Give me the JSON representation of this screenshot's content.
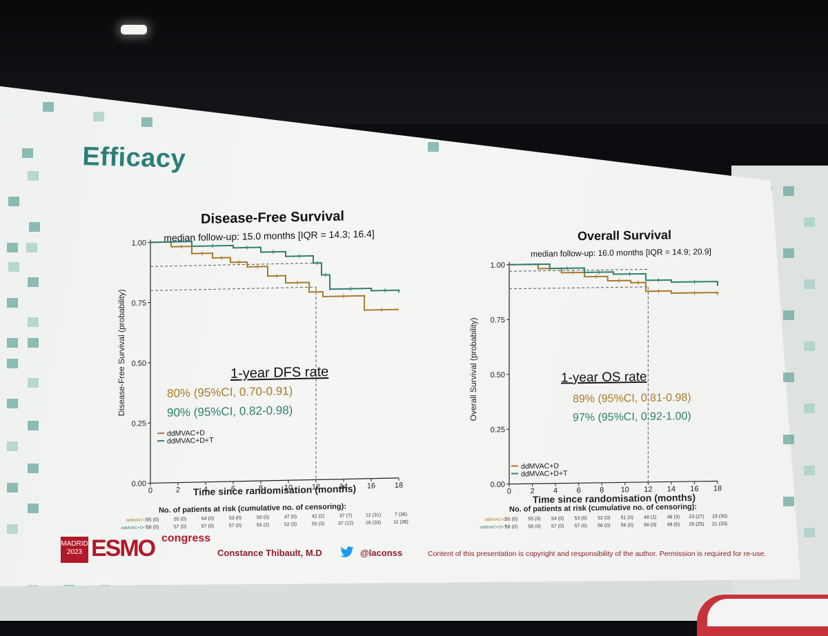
{
  "slide": {
    "title": "Efficacy",
    "footer": {
      "author": "Constance Thibault, M.D",
      "handle": "@laconss",
      "copyright": "Content of this presentation is copyright and responsibility of the author. Permission is required for re-use.",
      "logo_city_year": [
        "MADRID",
        "2023"
      ],
      "logo_word": "ESMO",
      "logo_sub": "congress"
    },
    "colors": {
      "arm_d": "#a87a2c",
      "arm_dt": "#2e7f6e",
      "title": "#2c7d78",
      "footer": "#8b1e2a"
    }
  },
  "chart_data": [
    {
      "type": "line",
      "title": "Disease-Free Survival",
      "subtitle": "median follow-up: 15.0 months [IQR = 14.3; 16.4]",
      "xlabel": "Time since randomisation (months)",
      "ylabel": "Disease-Free Survival (probability)",
      "xlim": [
        0,
        18
      ],
      "ylim": [
        0,
        1
      ],
      "xticks": [
        0,
        2,
        4,
        6,
        8,
        10,
        12,
        14,
        16,
        18
      ],
      "yticks": [
        0.0,
        0.25,
        0.5,
        0.75,
        1.0
      ],
      "ytick_labels": [
        "0.00",
        "0.25",
        "0.50",
        "0.75",
        "1.00"
      ],
      "series": [
        {
          "name": "ddMVAC+D",
          "color": "#a87a2c",
          "x": [
            0,
            1.5,
            3,
            4.5,
            5.8,
            7,
            8.5,
            9.8,
            11.5,
            12.5,
            15.5,
            18
          ],
          "y": [
            1.0,
            0.98,
            0.95,
            0.93,
            0.91,
            0.89,
            0.85,
            0.82,
            0.78,
            0.76,
            0.7,
            0.7
          ]
        },
        {
          "name": "ddMVAC+D+T",
          "color": "#2e7f6e",
          "x": [
            0,
            3,
            6,
            8,
            9.8,
            11.8,
            12.4,
            13,
            16,
            18
          ],
          "y": [
            1.0,
            0.98,
            0.97,
            0.95,
            0.93,
            0.9,
            0.85,
            0.79,
            0.78,
            0.77
          ]
        }
      ],
      "rate_box": {
        "heading": "1-year DFS rate",
        "lines": [
          "80% (95%CI, 0.70-0.91)",
          "90% (95%CI, 0.82-0.98)"
        ]
      },
      "reference_lines": {
        "x": 12,
        "y": [
          0.8,
          0.9
        ]
      },
      "risk_table": {
        "heading": "No. of patients at risk (cumulative no. of censoring):",
        "rows": [
          {
            "arm": "ddMVAC+D",
            "values": [
              "55 (0)",
              "55 (0)",
              "54 (0)",
              "53 (0)",
              "50 (0)",
              "47 (0)",
              "42 (2)",
              "37 (7)",
              "12 (31)",
              "7 (36)"
            ]
          },
          {
            "arm": "ddMVAC+D+T",
            "values": [
              "58 (0)",
              "57 (0)",
              "57 (0)",
              "57 (0)",
              "55 (2)",
              "52 (3)",
              "50 (3)",
              "37 (12)",
              "16 (33)",
              "11 (38)"
            ]
          }
        ]
      }
    },
    {
      "type": "line",
      "title": "Overall Survival",
      "subtitle": "median follow-up: 16.0 months [IQR = 14.9; 20.9]",
      "xlabel": "Time since randomisation (months)",
      "ylabel": "Overall Survival (probability)",
      "xlim": [
        0,
        18
      ],
      "ylim": [
        0,
        1
      ],
      "xticks": [
        0,
        2,
        4,
        6,
        8,
        10,
        12,
        14,
        16,
        18
      ],
      "yticks": [
        0.0,
        0.25,
        0.5,
        0.75,
        1.0
      ],
      "ytick_labels": [
        "0.00",
        "0.25",
        "0.50",
        "0.75",
        "1.00"
      ],
      "series": [
        {
          "name": "ddMVAC+D",
          "color": "#a87a2c",
          "x": [
            0,
            2.5,
            4.5,
            6.5,
            8.5,
            10.5,
            11.8,
            14,
            18
          ],
          "y": [
            1.0,
            0.98,
            0.96,
            0.94,
            0.92,
            0.91,
            0.87,
            0.86,
            0.85
          ]
        },
        {
          "name": "ddMVAC+D+T",
          "color": "#2e7f6e",
          "x": [
            0,
            3.5,
            6.5,
            9,
            11.8,
            14,
            18
          ],
          "y": [
            1.0,
            0.98,
            0.96,
            0.95,
            0.92,
            0.91,
            0.89
          ]
        }
      ],
      "rate_box": {
        "heading": "1-year OS rate",
        "lines": [
          "89% (95%CI, 0.81-0.98)",
          "97% (95%CI, 0.92-1.00)"
        ]
      },
      "reference_lines": {
        "x": 12,
        "y": [
          0.89,
          0.97
        ]
      },
      "risk_table": {
        "heading": "No. of patients at risk (cumulative no. of censoring):",
        "rows": [
          {
            "arm": "ddMVAC+D",
            "values": [
              "55 (0)",
              "55 (0)",
              "54 (0)",
              "53 (0)",
              "52 (0)",
              "51 (0)",
              "48 (1)",
              "46 (3)",
              "23 (27)",
              "19 (30)"
            ]
          },
          {
            "arm": "ddMVAC+D+T",
            "values": [
              "58 (0)",
              "58 (0)",
              "57 (0)",
              "57 (0)",
              "56 (0)",
              "56 (0)",
              "56 (0)",
              "49 (5)",
              "29 (25)",
              "21 (33)"
            ]
          }
        ]
      }
    }
  ]
}
